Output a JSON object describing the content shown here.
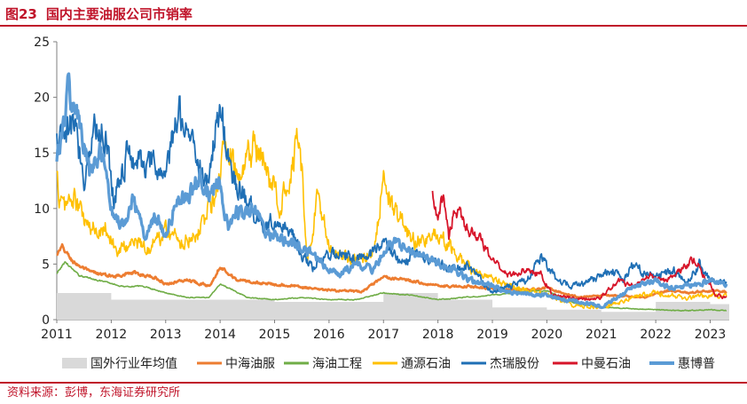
{
  "header": {
    "figure_number": "图23",
    "title": "国内主要油服公司市销率"
  },
  "footer": {
    "source": "资料来源：彭博，东海证券研究所"
  },
  "colors": {
    "brand": "#c0142a",
    "series": {
      "国外行业年均值": "#d9d9d9",
      "中海油服": "#ed7d31",
      "海油工程": "#70ad47",
      "通源石油": "#ffc000",
      "杰瑞股份": "#1f6fb5",
      "中曼石油": "#d7152a",
      "惠博普": "#5b9bd5"
    }
  },
  "chart_data": {
    "type": "line",
    "title": "国内主要油服公司市销率",
    "xlabel": "",
    "ylabel": "",
    "xlim": [
      2011.0,
      2023.35
    ],
    "ylim": [
      0,
      25
    ],
    "x_ticks": [
      2011,
      2012,
      2013,
      2014,
      2015,
      2016,
      2017,
      2018,
      2019,
      2020,
      2021,
      2022,
      2023
    ],
    "y_ticks": [
      0,
      5,
      10,
      15,
      20,
      25
    ],
    "grid": false,
    "legend_position": "bottom",
    "series": [
      {
        "name": "国外行业年均值",
        "type": "step-area",
        "x": [
          2011,
          2012,
          2013,
          2014,
          2015,
          2016,
          2017,
          2018,
          2019,
          2020,
          2021,
          2022,
          2023
        ],
        "y": [
          2.4,
          1.8,
          1.8,
          1.8,
          1.6,
          1.6,
          2.4,
          1.8,
          1.1,
          0.9,
          0.7,
          1.6,
          1.4
        ]
      },
      {
        "name": "中海油服",
        "x": [
          2011.0,
          2011.1,
          2011.3,
          2011.6,
          2012.0,
          2012.4,
          2012.8,
          2013.0,
          2013.4,
          2013.8,
          2014.0,
          2014.3,
          2014.7,
          2015.0,
          2015.4,
          2015.8,
          2016.2,
          2016.6,
          2017.0,
          2017.4,
          2017.8,
          2018.2,
          2018.6,
          2019.0,
          2019.4,
          2019.8,
          2020.0,
          2020.3,
          2020.6,
          2021.0,
          2021.4,
          2021.8,
          2022.2,
          2022.6,
          2023.0,
          2023.3
        ],
        "y": [
          5.8,
          6.5,
          5.2,
          4.3,
          3.9,
          4.2,
          3.8,
          3.2,
          3.6,
          3.0,
          4.8,
          3.6,
          3.3,
          3.2,
          3.0,
          2.7,
          2.6,
          2.5,
          3.8,
          3.6,
          3.2,
          3.0,
          3.0,
          2.8,
          2.7,
          2.7,
          2.9,
          2.4,
          2.0,
          2.2,
          2.1,
          2.0,
          2.6,
          2.4,
          2.6,
          2.5
        ]
      },
      {
        "name": "海油工程",
        "x": [
          2011.0,
          2011.15,
          2011.4,
          2011.8,
          2012.2,
          2012.6,
          2013.0,
          2013.4,
          2013.8,
          2014.0,
          2014.5,
          2015.0,
          2015.5,
          2016.0,
          2016.5,
          2017.0,
          2017.5,
          2018.0,
          2018.5,
          2019.0,
          2019.5,
          2020.0,
          2020.5,
          2021.0,
          2021.5,
          2022.0,
          2022.5,
          2023.0,
          2023.3
        ],
        "y": [
          4.1,
          5.2,
          4.0,
          3.5,
          3.0,
          3.0,
          2.4,
          2.0,
          2.0,
          3.2,
          2.0,
          1.8,
          2.0,
          1.8,
          1.8,
          2.4,
          2.2,
          1.8,
          2.0,
          2.2,
          2.5,
          2.6,
          1.5,
          1.1,
          1.0,
          0.9,
          0.8,
          0.9,
          0.8
        ]
      },
      {
        "name": "通源石油",
        "x": [
          2011.0,
          2011.1,
          2011.3,
          2011.6,
          2011.9,
          2012.1,
          2012.4,
          2012.7,
          2013.0,
          2013.3,
          2013.6,
          2013.9,
          2014.1,
          2014.35,
          2014.6,
          2014.9,
          2015.1,
          2015.3,
          2015.45,
          2015.6,
          2015.8,
          2016.0,
          2016.4,
          2016.8,
          2017.0,
          2017.3,
          2017.6,
          2018.0,
          2018.3,
          2018.6,
          2019.0,
          2019.5,
          2020.0,
          2020.5,
          2021.0,
          2021.5,
          2022.0,
          2022.5,
          2023.0,
          2023.3
        ],
        "y": [
          12.5,
          10.0,
          11.0,
          8.0,
          8.5,
          6.0,
          7.0,
          6.5,
          8.0,
          7.0,
          8.0,
          11.0,
          16.0,
          12.0,
          15.5,
          13.0,
          10.0,
          14.0,
          17.5,
          5.0,
          11.5,
          6.5,
          5.5,
          6.0,
          12.5,
          9.0,
          7.0,
          7.5,
          6.0,
          4.5,
          3.5,
          2.8,
          2.2,
          1.3,
          1.2,
          1.8,
          2.5,
          2.0,
          2.2,
          2.1
        ]
      },
      {
        "name": "杰瑞股份",
        "x": [
          2011.0,
          2011.15,
          2011.3,
          2011.5,
          2011.7,
          2011.9,
          2012.05,
          2012.3,
          2012.6,
          2012.85,
          2013.0,
          2013.25,
          2013.5,
          2013.75,
          2014.0,
          2014.2,
          2014.5,
          2014.8,
          2015.0,
          2015.3,
          2015.5,
          2015.7,
          2015.9,
          2016.2,
          2016.5,
          2016.8,
          2017.0,
          2017.3,
          2017.6,
          2017.9,
          2018.2,
          2018.5,
          2018.8,
          2019.0,
          2019.3,
          2019.6,
          2019.9,
          2020.2,
          2020.5,
          2020.8,
          2021.0,
          2021.2,
          2021.4,
          2021.6,
          2021.8,
          2022.0,
          2022.3,
          2022.6,
          2022.8,
          2023.0,
          2023.3
        ],
        "y": [
          15.8,
          16.0,
          18.0,
          13.0,
          17.5,
          16.5,
          11.0,
          15.0,
          14.0,
          13.5,
          13.0,
          19.0,
          16.0,
          12.0,
          19.5,
          13.0,
          10.5,
          8.5,
          9.0,
          8.0,
          6.0,
          4.5,
          5.5,
          6.0,
          5.5,
          6.0,
          7.0,
          5.0,
          6.0,
          5.5,
          4.5,
          5.0,
          3.5,
          2.5,
          3.0,
          3.5,
          5.5,
          3.5,
          3.0,
          3.5,
          4.0,
          4.5,
          3.5,
          5.0,
          4.0,
          4.0,
          4.5,
          3.5,
          5.0,
          3.5,
          3.4
        ]
      },
      {
        "name": "中曼石油",
        "x": [
          2017.9,
          2018.0,
          2018.1,
          2018.2,
          2018.3,
          2018.45,
          2018.6,
          2018.75,
          2018.9,
          2019.1,
          2019.3,
          2019.6,
          2019.9,
          2020.1,
          2020.4,
          2020.7,
          2021.0,
          2021.3,
          2021.6,
          2021.9,
          2022.2,
          2022.5,
          2022.7,
          2022.9,
          2023.1,
          2023.3
        ],
        "y": [
          11.0,
          8.5,
          11.5,
          7.5,
          10.0,
          9.0,
          8.0,
          7.5,
          6.0,
          5.0,
          4.0,
          4.5,
          4.0,
          2.2,
          2.0,
          1.8,
          2.0,
          3.5,
          3.0,
          4.0,
          3.5,
          4.5,
          5.5,
          4.0,
          2.2,
          2.0
        ]
      },
      {
        "name": "惠博普",
        "x": [
          2011.0,
          2011.1,
          2011.2,
          2011.4,
          2011.6,
          2011.8,
          2012.0,
          2012.2,
          2012.4,
          2012.6,
          2012.8,
          2013.0,
          2013.2,
          2013.4,
          2013.6,
          2013.8,
          2014.0,
          2014.15,
          2014.3,
          2014.45,
          2014.6,
          2014.8,
          2015.0,
          2015.2,
          2015.5,
          2015.8,
          2016.0,
          2016.2,
          2016.5,
          2016.8,
          2017.0,
          2017.2,
          2017.5,
          2017.8,
          2018.0,
          2018.3,
          2018.6,
          2019.0,
          2019.3,
          2019.6,
          2020.0,
          2020.3,
          2020.6,
          2021.0,
          2021.3,
          2021.6,
          2022.0,
          2022.3,
          2022.6,
          2023.0,
          2023.3
        ],
        "y": [
          15.0,
          16.5,
          20.5,
          18.0,
          13.0,
          15.0,
          10.0,
          8.5,
          11.0,
          7.5,
          9.5,
          7.5,
          10.5,
          11.0,
          13.0,
          11.5,
          12.5,
          8.0,
          10.0,
          9.5,
          10.5,
          8.0,
          7.5,
          7.0,
          6.5,
          5.5,
          4.5,
          4.0,
          5.0,
          4.5,
          6.0,
          7.0,
          6.0,
          5.5,
          5.0,
          4.5,
          3.5,
          3.0,
          2.5,
          2.3,
          2.2,
          1.8,
          1.6,
          1.2,
          2.0,
          3.0,
          3.5,
          2.8,
          3.0,
          3.5,
          3.2
        ]
      }
    ]
  }
}
